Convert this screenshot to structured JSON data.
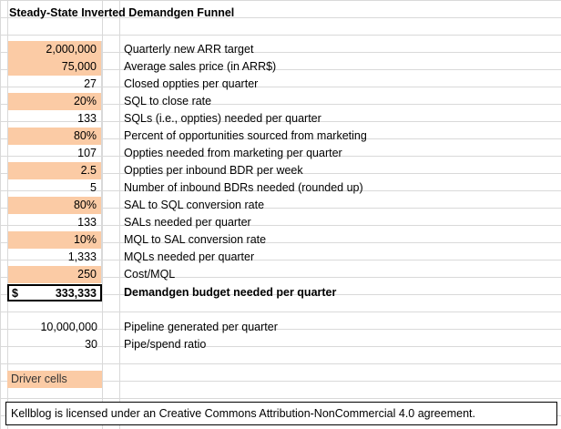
{
  "title": "Steady-State Inverted Demandgen Funnel",
  "rows": [
    {
      "value": "2,000,000",
      "label": "Quarterly new ARR target",
      "driver": true
    },
    {
      "value": "75,000",
      "label": "Average sales price (in ARR$)",
      "driver": true
    },
    {
      "value": "27",
      "label": "Closed oppties per quarter",
      "driver": false
    },
    {
      "value": "20%",
      "label": "SQL to close rate",
      "driver": true
    },
    {
      "value": "133",
      "label": "SQLs (i.e., oppties) needed per quarter",
      "driver": false
    },
    {
      "value": "80%",
      "label": "Percent of opportunities sourced from marketing",
      "driver": true
    },
    {
      "value": "107",
      "label": "Oppties needed from marketing per quarter",
      "driver": false
    },
    {
      "value": "2.5",
      "label": "Oppties per inbound BDR per week",
      "driver": true
    },
    {
      "value": "5",
      "label": "Number of inbound BDRs needed (rounded up)",
      "driver": false
    },
    {
      "value": "80%",
      "label": "SAL to SQL conversion rate",
      "driver": true
    },
    {
      "value": "133",
      "label": "SALs needed per quarter",
      "driver": false
    },
    {
      "value": "10%",
      "label": "MQL to SAL conversion rate",
      "driver": true
    },
    {
      "value": "1,333",
      "label": "MQLs needed per quarter",
      "driver": false
    },
    {
      "value": "250",
      "label": "Cost/MQL",
      "driver": true
    }
  ],
  "budget": {
    "currency": "$",
    "value": "333,333",
    "label": "Demandgen budget needed per quarter"
  },
  "pipeline": [
    {
      "value": "10,000,000",
      "label": "Pipeline generated per quarter"
    },
    {
      "value": "30",
      "label": "Pipe/spend ratio"
    }
  ],
  "legend": "Driver cells",
  "footer": "Kellblog is licensed under an Creative Commons Attribution-NonCommercial 4.0  agreement.",
  "colors": {
    "driver_fill": "#fbcba5",
    "grid": "#d9d9d9"
  }
}
